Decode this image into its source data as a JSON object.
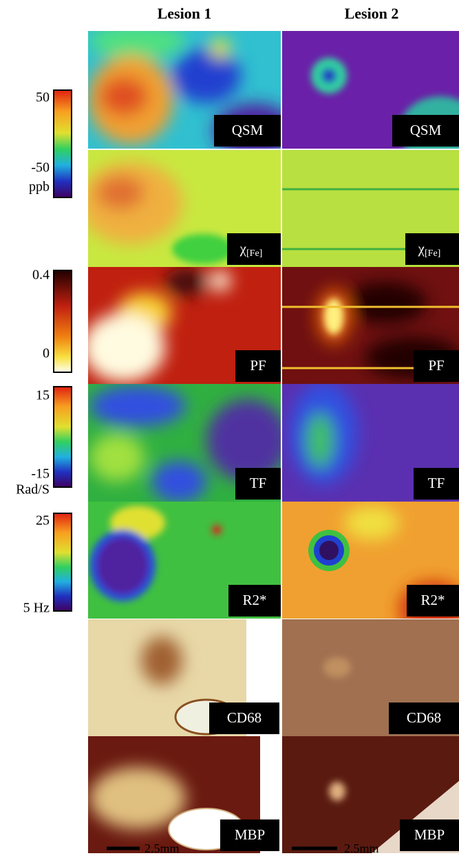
{
  "header": {
    "columns": [
      "Lesion 1",
      "Lesion 2"
    ]
  },
  "rows": [
    {
      "label": "QSM"
    },
    {
      "label": {
        "base": "χ",
        "sub": "[Fe]"
      }
    },
    {
      "label": "PF"
    },
    {
      "label": "TF"
    },
    {
      "label": "R2*"
    },
    {
      "label": "CD68"
    },
    {
      "label": "MBP"
    }
  ],
  "colorbars": [
    {
      "max": "50",
      "min": "-50",
      "unit": "ppb"
    },
    {
      "max": "0.4",
      "min": "0"
    },
    {
      "max": "15",
      "min": "-15",
      "unit": "Rad/S"
    },
    {
      "max": "25",
      "min": "5 Hz"
    }
  ],
  "scale_bars": [
    "2.5mm",
    "2.5mm"
  ]
}
